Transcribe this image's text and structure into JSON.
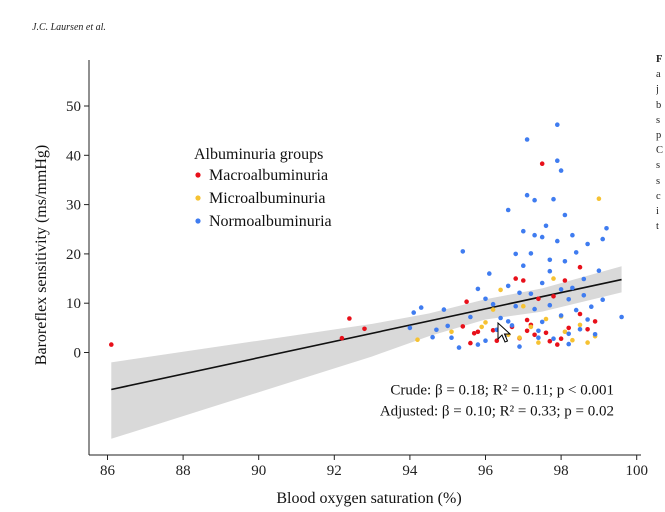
{
  "header": {
    "running_head": "J.C. Laursen et al."
  },
  "side_text": {
    "lines": [
      "F",
      "a",
      "j",
      "b",
      "s",
      "p",
      "C",
      "s",
      "s",
      "c",
      "i",
      "t"
    ]
  },
  "chart_data": {
    "type": "scatter",
    "xlabel": "Blood oxygen saturation (%)",
    "ylabel": "Baroreflex sensitivity (ms/mmHg)",
    "xlim": [
      85.3,
      100.4
    ],
    "ylim": [
      -20.5,
      59
    ],
    "xticks": [
      86,
      88,
      90,
      92,
      94,
      96,
      98,
      100
    ],
    "yticks": [
      0,
      10,
      20,
      30,
      40,
      50
    ],
    "grid": false,
    "legend": {
      "title": "Albuminuria groups",
      "position": "upper-left",
      "entries": [
        {
          "name": "Macroalbuminuria",
          "color": "#e8101a"
        },
        {
          "name": "Microalbuminuria",
          "color": "#f6c232"
        },
        {
          "name": "Normoalbuminuria",
          "color": "#3f7cf0"
        }
      ]
    },
    "regression": {
      "x": [
        86.1,
        99.6
      ],
      "y": [
        -7.5,
        14.8
      ]
    },
    "confidence_band": {
      "x": [
        86.1,
        93,
        94.5,
        96,
        97.5,
        99.6
      ],
      "upper": [
        -2,
        5.8,
        7.9,
        10.8,
        13,
        17.5
      ],
      "lower": [
        -17.5,
        -0.8,
        3.3,
        6.7,
        8.3,
        12.2
      ],
      "color": "#d9d9d9"
    },
    "annotations": [
      {
        "text": "Crude: β = 0.18; R² = 0.11; p < 0.001",
        "x": 96.6,
        "y": -7.5
      },
      {
        "text": "Adjusted: β = 0.10; R² = 0.33; p = 0.02",
        "x": 96.6,
        "y": -11.8
      }
    ],
    "series": [
      {
        "name": "Macroalbuminuria",
        "color": "#e8101a",
        "points": [
          [
            86.1,
            1.6
          ],
          [
            92.2,
            2.9
          ],
          [
            92.4,
            6.9
          ],
          [
            92.8,
            4.8
          ],
          [
            95.4,
            5.3
          ],
          [
            95.5,
            10.3
          ],
          [
            95.6,
            1.9
          ],
          [
            95.7,
            3.9
          ],
          [
            96.2,
            4.5
          ],
          [
            96.3,
            2.4
          ],
          [
            96.5,
            3.4
          ],
          [
            96.7,
            5.2
          ],
          [
            96.8,
            15.0
          ],
          [
            96.9,
            2.9
          ],
          [
            97.0,
            14.6
          ],
          [
            97.1,
            4.4
          ],
          [
            97.2,
            5.6
          ],
          [
            97.3,
            3.6
          ],
          [
            97.4,
            10.9
          ],
          [
            97.5,
            38.3
          ],
          [
            97.6,
            4.0
          ],
          [
            97.7,
            2.3
          ],
          [
            97.8,
            11.4
          ],
          [
            97.9,
            1.6
          ],
          [
            98.0,
            2.8
          ],
          [
            98.1,
            14.6
          ],
          [
            98.2,
            5.0
          ],
          [
            98.5,
            17.3
          ],
          [
            98.7,
            4.7
          ],
          [
            98.9,
            6.3
          ],
          [
            98.5,
            7.8
          ],
          [
            97.1,
            6.6
          ],
          [
            95.8,
            4.2
          ]
        ]
      },
      {
        "name": "Microalbuminuria",
        "color": "#f6c232",
        "points": [
          [
            94.2,
            2.6
          ],
          [
            95.1,
            4.2
          ],
          [
            95.9,
            5.2
          ],
          [
            96.2,
            8.7
          ],
          [
            96.4,
            12.7
          ],
          [
            96.6,
            3.6
          ],
          [
            96.9,
            3.0
          ],
          [
            97.2,
            5.2
          ],
          [
            97.4,
            2.0
          ],
          [
            97.6,
            6.8
          ],
          [
            97.8,
            15.0
          ],
          [
            98.0,
            7.3
          ],
          [
            98.1,
            4.2
          ],
          [
            98.3,
            2.5
          ],
          [
            98.5,
            5.6
          ],
          [
            98.7,
            2.0
          ],
          [
            98.9,
            3.3
          ],
          [
            99.0,
            31.2
          ],
          [
            97.0,
            9.4
          ],
          [
            96.0,
            6.1
          ]
        ]
      },
      {
        "name": "Normoalbuminuria",
        "color": "#3f7cf0",
        "points": [
          [
            94.0,
            5.0
          ],
          [
            94.1,
            8.1
          ],
          [
            94.3,
            9.1
          ],
          [
            94.6,
            3.1
          ],
          [
            94.7,
            4.6
          ],
          [
            94.9,
            8.7
          ],
          [
            95.0,
            5.4
          ],
          [
            95.1,
            3.0
          ],
          [
            95.3,
            1.0
          ],
          [
            95.4,
            20.5
          ],
          [
            95.6,
            7.2
          ],
          [
            95.8,
            12.9
          ],
          [
            96.0,
            2.4
          ],
          [
            96.0,
            10.9
          ],
          [
            96.1,
            16.0
          ],
          [
            96.2,
            9.8
          ],
          [
            96.3,
            4.6
          ],
          [
            96.4,
            7.0
          ],
          [
            96.5,
            3.2
          ],
          [
            96.6,
            28.9
          ],
          [
            96.6,
            13.5
          ],
          [
            96.7,
            5.5
          ],
          [
            96.8,
            9.4
          ],
          [
            96.8,
            20.0
          ],
          [
            96.9,
            12.1
          ],
          [
            97.0,
            24.6
          ],
          [
            97.0,
            17.6
          ],
          [
            97.1,
            43.2
          ],
          [
            97.1,
            31.9
          ],
          [
            97.2,
            11.9
          ],
          [
            97.2,
            20.1
          ],
          [
            97.3,
            8.8
          ],
          [
            97.3,
            23.8
          ],
          [
            97.3,
            30.9
          ],
          [
            97.4,
            3.0
          ],
          [
            97.5,
            14.1
          ],
          [
            97.5,
            23.4
          ],
          [
            97.5,
            6.2
          ],
          [
            97.6,
            25.7
          ],
          [
            97.7,
            9.6
          ],
          [
            97.7,
            16.5
          ],
          [
            97.8,
            31.1
          ],
          [
            97.8,
            2.8
          ],
          [
            97.9,
            46.2
          ],
          [
            97.9,
            38.9
          ],
          [
            97.9,
            22.6
          ],
          [
            98.0,
            36.9
          ],
          [
            98.0,
            12.8
          ],
          [
            98.0,
            7.5
          ],
          [
            98.1,
            18.5
          ],
          [
            98.1,
            27.9
          ],
          [
            98.2,
            10.8
          ],
          [
            98.2,
            3.8
          ],
          [
            98.3,
            23.8
          ],
          [
            98.3,
            13.1
          ],
          [
            98.4,
            20.3
          ],
          [
            98.4,
            8.6
          ],
          [
            98.5,
            4.7
          ],
          [
            98.6,
            11.6
          ],
          [
            98.6,
            14.9
          ],
          [
            98.7,
            22.0
          ],
          [
            98.7,
            6.7
          ],
          [
            98.8,
            9.3
          ],
          [
            98.9,
            3.7
          ],
          [
            99.0,
            16.6
          ],
          [
            99.1,
            23.0
          ],
          [
            99.2,
            25.2
          ],
          [
            99.6,
            7.2
          ],
          [
            99.1,
            10.7
          ],
          [
            98.2,
            1.7
          ],
          [
            97.4,
            4.4
          ],
          [
            96.6,
            6.3
          ],
          [
            95.8,
            1.6
          ],
          [
            97.7,
            18.8
          ],
          [
            96.9,
            1.2
          ]
        ]
      }
    ]
  }
}
